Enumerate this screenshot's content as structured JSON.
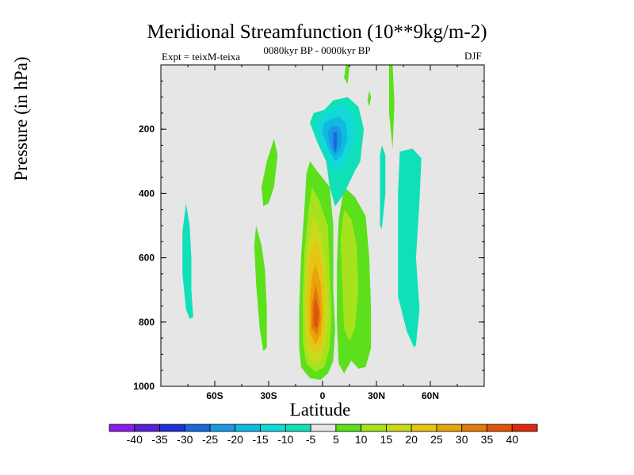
{
  "chart_data": {
    "type": "contour",
    "title": "Meridional Streamfunction (10**9kg/m-2)",
    "subtitle": "0080kyr BP - 0000kyr BP",
    "experiment": "Expt = teixM-teixa",
    "season": "DJF",
    "xlabel": "Latitude",
    "ylabel": "Pressure (in hPa)",
    "xlim": [
      -90,
      90
    ],
    "ylim": [
      1000,
      0
    ],
    "x_ticks": [
      {
        "value": -60,
        "label": "60S"
      },
      {
        "value": -30,
        "label": "30S"
      },
      {
        "value": 0,
        "label": "0"
      },
      {
        "value": 30,
        "label": "30N"
      },
      {
        "value": 60,
        "label": "60N"
      }
    ],
    "y_ticks": [
      {
        "value": 200,
        "label": "200"
      },
      {
        "value": 400,
        "label": "400"
      },
      {
        "value": 600,
        "label": "600"
      },
      {
        "value": 800,
        "label": "800"
      },
      {
        "value": 1000,
        "label": "1000"
      }
    ],
    "background_color": "#e6e6e6",
    "colorbar": {
      "labels": [
        "-40",
        "-35",
        "-30",
        "-25",
        "-20",
        "-15",
        "-10",
        "-5",
        "5",
        "10",
        "15",
        "20",
        "25",
        "30",
        "35",
        "40"
      ],
      "colors": [
        "#8a1eea",
        "#5a1fd8",
        "#2030d6",
        "#1a67e0",
        "#1b98e3",
        "#10b9e2",
        "#13d8d8",
        "#10e0b8",
        "#e6e6e6",
        "#5ce01c",
        "#a6e21e",
        "#c8da1b",
        "#e7c313",
        "#e8a30c",
        "#e57a0a",
        "#e25408",
        "#db2a10"
      ]
    },
    "features": [
      {
        "name": "positive cell (Hadley, southern)",
        "center_lat": -5,
        "center_p": 760,
        "peak_value": 35,
        "color_levels": [
          "#5ce01c",
          "#a6e21e",
          "#c8da1b",
          "#e7c313",
          "#e8a30c",
          "#e57a0a",
          "#e25408"
        ]
      },
      {
        "name": "positive cell (northern tropics)",
        "center_lat": 12,
        "center_p": 600,
        "peak_value": 10,
        "color_levels": [
          "#5ce01c",
          "#a6e21e"
        ]
      },
      {
        "name": "negative cell (upper troposphere)",
        "center_lat": 7,
        "center_p": 250,
        "peak_value": -25,
        "color_levels": [
          "#10e0b8",
          "#13d8d8",
          "#10b9e2",
          "#1b98e3",
          "#1a67e0"
        ]
      },
      {
        "name": "negative band (northern midlatitudes)",
        "center_lat": 45,
        "center_p": 560,
        "peak_value": -5,
        "color_levels": [
          "#10e0b8"
        ]
      },
      {
        "name": "negative band (southern high latitudes)",
        "center_lat": -75,
        "center_p": 610,
        "peak_value": -5,
        "color_levels": [
          "#10e0b8"
        ]
      }
    ]
  }
}
